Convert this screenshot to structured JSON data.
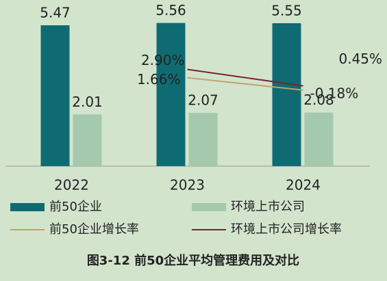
{
  "chart_data": {
    "type": "bar",
    "title": "图3-12 前50企业平均管理费用及对比",
    "categories": [
      "2022",
      "2023",
      "2024"
    ],
    "series": [
      {
        "name": "前50企业",
        "color": "#0f6b72",
        "values": [
          5.47,
          5.56,
          5.55
        ]
      },
      {
        "name": "环境上市公司",
        "color": "#a4c9ad",
        "values": [
          2.01,
          2.07,
          2.08
        ]
      },
      {
        "name": "前50企业增长率",
        "type": "line",
        "axis": "y2",
        "color": "#c3a06a",
        "values": [
          null,
          1.66,
          -0.18
        ],
        "value_labels": [
          null,
          "1.66%",
          "-0.18%"
        ]
      },
      {
        "name": "环境上市公司增长率",
        "type": "line",
        "axis": "y2",
        "color": "#7c2233",
        "values": [
          null,
          2.9,
          0.45
        ],
        "value_labels": [
          null,
          "2.90%",
          "0.45%"
        ]
      }
    ],
    "ylim": [
      0,
      6
    ],
    "y2lim": [
      -11.5,
      11.5
    ]
  }
}
